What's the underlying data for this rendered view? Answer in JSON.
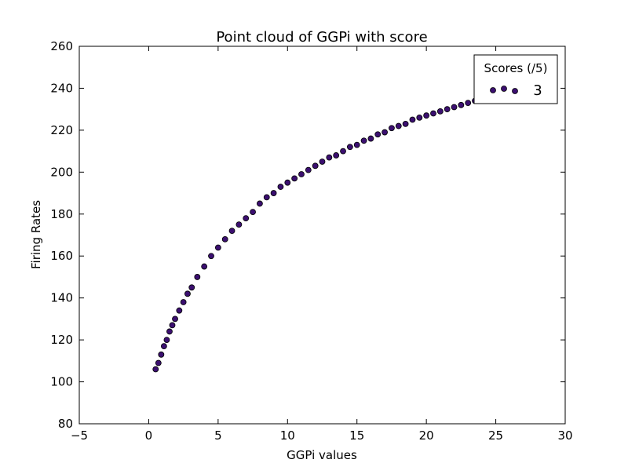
{
  "chart_data": {
    "type": "scatter",
    "title": "Point cloud of GGPi with score",
    "xlabel": "GGPi values",
    "ylabel": "Firing Rates",
    "xlim": [
      -5,
      30
    ],
    "ylim": [
      80,
      260
    ],
    "xticks": [
      -5,
      0,
      5,
      10,
      15,
      20,
      25,
      30
    ],
    "yticks": [
      80,
      100,
      120,
      140,
      160,
      180,
      200,
      220,
      240,
      260
    ],
    "xtick_labels": [
      "−5",
      "0",
      "5",
      "10",
      "15",
      "20",
      "25",
      "30"
    ],
    "ytick_labels": [
      "80",
      "100",
      "120",
      "140",
      "160",
      "180",
      "200",
      "220",
      "240",
      "260"
    ],
    "grid": false,
    "legend": {
      "title": "Scores (/5)",
      "placement": "top-right",
      "entries": [
        "3"
      ]
    },
    "marker_color": "#3b0f70",
    "marker_edge": "#000000",
    "series": [
      {
        "name": "3",
        "x": [
          0.5,
          0.7,
          0.9,
          1.1,
          1.3,
          1.5,
          1.7,
          1.9,
          2.2,
          2.5,
          2.8,
          3.1,
          3.5,
          4.0,
          4.5,
          5.0,
          5.5,
          6.0,
          6.5,
          7.0,
          7.5,
          8.0,
          8.5,
          9.0,
          9.5,
          10.0,
          10.5,
          11.0,
          11.5,
          12.0,
          12.5,
          13.0,
          13.5,
          14.0,
          14.5,
          15.0,
          15.5,
          16.0,
          16.5,
          17.0,
          17.5,
          18.0,
          18.5,
          19.0,
          19.5,
          20.0,
          20.5,
          21.0,
          21.5,
          22.0,
          22.5,
          23.0,
          23.5,
          24.0
        ],
        "y": [
          106,
          109,
          113,
          117,
          120,
          124,
          127,
          130,
          134,
          138,
          142,
          145,
          150,
          155,
          160,
          164,
          168,
          172,
          175,
          178,
          181,
          185,
          188,
          190,
          193,
          195,
          197,
          199,
          201,
          203,
          205,
          207,
          208,
          210,
          212,
          213,
          215,
          216,
          218,
          219,
          221,
          222,
          223,
          225,
          226,
          227,
          228,
          229,
          230,
          231,
          232,
          233,
          234,
          235
        ]
      }
    ]
  }
}
